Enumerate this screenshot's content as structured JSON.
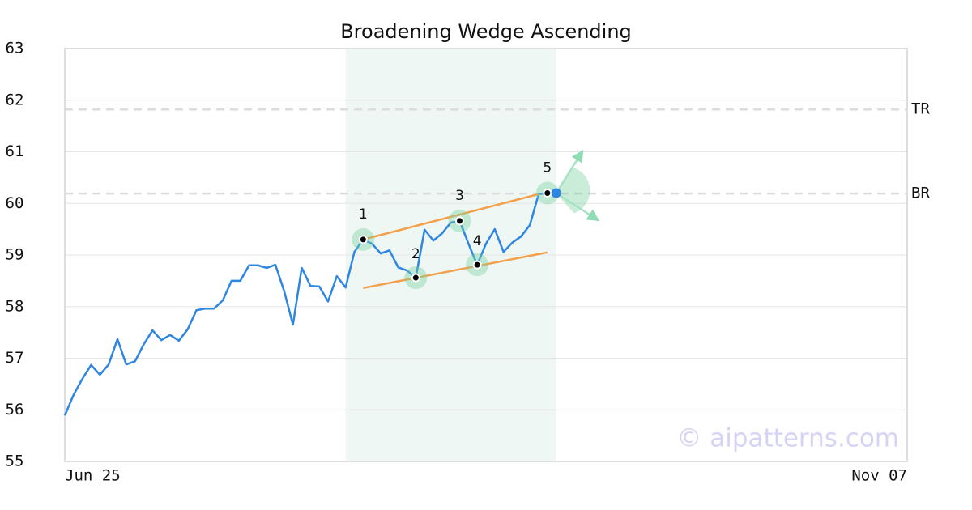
{
  "chart_data": {
    "type": "line",
    "title": "Broadening Wedge Ascending",
    "categories": [
      "Jun 25",
      null,
      null,
      null,
      null,
      null,
      null,
      null,
      null,
      null,
      null,
      null,
      null,
      null,
      null,
      null,
      null,
      null,
      null,
      null,
      null,
      null,
      null,
      null,
      null,
      null,
      null,
      null,
      null,
      null,
      null,
      null,
      null,
      null,
      null,
      null,
      null,
      null,
      null,
      null,
      null,
      null,
      null,
      null,
      null,
      null,
      null,
      null,
      null,
      null,
      null,
      null,
      null,
      null,
      null,
      null,
      null,
      null,
      null,
      null,
      null,
      null,
      null,
      null,
      null,
      null,
      null,
      null,
      null,
      null,
      null,
      null,
      null,
      null,
      null,
      null,
      null,
      null,
      null,
      null,
      null,
      null,
      null,
      null,
      null,
      null,
      null,
      null,
      null,
      null,
      null,
      null,
      null,
      null,
      null,
      null,
      "Nov 07"
    ],
    "series": [
      {
        "color": "#2f86e0",
        "values": [
          55.89,
          56.29,
          56.6,
          56.87,
          56.68,
          56.88,
          57.37,
          56.88,
          56.94,
          57.27,
          57.54,
          57.35,
          57.45,
          57.34,
          57.56,
          57.93,
          57.96,
          57.96,
          58.12,
          58.5,
          58.5,
          58.8,
          58.8,
          58.75,
          58.81,
          58.3,
          57.65,
          58.75,
          58.4,
          58.39,
          58.1,
          58.59,
          58.37,
          59.06,
          59.3,
          59.22,
          59.03,
          59.09,
          58.76,
          58.7,
          58.56,
          59.49,
          59.28,
          59.42,
          59.63,
          59.66,
          59.22,
          58.81,
          59.22,
          59.5,
          59.06,
          59.24,
          59.36,
          59.58,
          60.18,
          60.2,
          null,
          null,
          null,
          null,
          null,
          null,
          null,
          null,
          null,
          null,
          null,
          null,
          null,
          null,
          null,
          null,
          null,
          null,
          null,
          null,
          null,
          null,
          null,
          null,
          null,
          null,
          null,
          null,
          null,
          null,
          null,
          null,
          null,
          null,
          null,
          null,
          null,
          null,
          null,
          null,
          null
        ]
      }
    ],
    "ylim": [
      55,
      63
    ],
    "yticks": [
      55,
      56,
      57,
      58,
      59,
      60,
      61,
      62,
      63
    ],
    "grid": true,
    "highlight": [
      32,
      56
    ],
    "pattern_points": [
      {
        "label": "1",
        "index": 34,
        "value": 59.3
      },
      {
        "label": "2",
        "index": 40,
        "value": 58.56
      },
      {
        "label": "3",
        "index": 45,
        "value": 59.66
      },
      {
        "label": "4",
        "index": 47,
        "value": 58.81
      },
      {
        "label": "5",
        "index": 55,
        "value": 60.2
      }
    ],
    "current_point": {
      "index": 56,
      "value": 60.2,
      "color": "#2f86e0"
    },
    "trendlines": [
      {
        "color": "#f4a04a",
        "start": [
          34,
          59.3
        ],
        "end": [
          54,
          60.18
        ]
      },
      {
        "color": "#f4a04a",
        "start": [
          34,
          58.36
        ],
        "end": [
          55,
          59.05
        ]
      }
    ],
    "levels": [
      {
        "label": "TR",
        "value": 61.82
      },
      {
        "label": "BR",
        "value": 60.19
      }
    ],
    "watermark": "© aipatterns.com"
  }
}
